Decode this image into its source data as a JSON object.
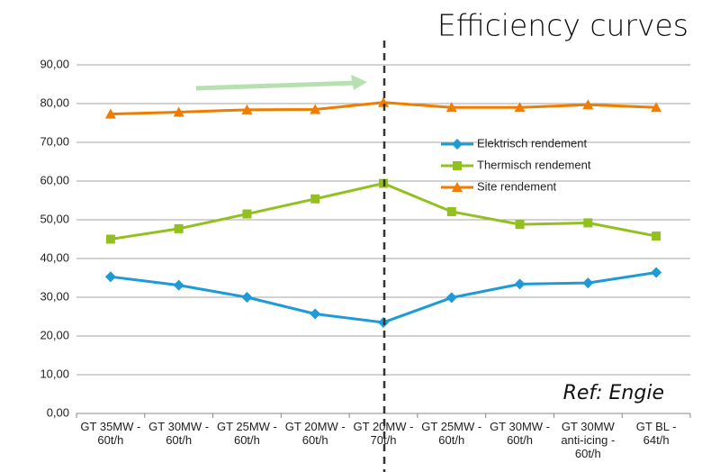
{
  "chart_data": {
    "type": "line",
    "title": "Efficiency curves",
    "annotation": "Ref: Engie",
    "categories": [
      "GT 35MW - 60t/h",
      "GT 30MW - 60t/h",
      "GT 25MW - 60t/h",
      "GT 20MW - 60t/h",
      "GT 20MW - 70t/h",
      "GT 25MW - 60t/h",
      "GT 30MW - 60t/h",
      "GT 30MW anti-icing - 60t/h",
      "GT BL - 64t/h"
    ],
    "series": [
      {
        "name": "Elektrisch rendement",
        "color": "#1e9ad6",
        "marker": "diamond",
        "values": [
          35.3,
          33.1,
          30.0,
          25.7,
          23.5,
          29.9,
          33.4,
          33.7,
          36.4
        ]
      },
      {
        "name": "Thermisch rendement",
        "color": "#92c01f",
        "marker": "square",
        "values": [
          45.0,
          47.7,
          51.5,
          55.4,
          59.4,
          52.1,
          48.8,
          49.2,
          45.8
        ]
      },
      {
        "name": "Site rendement",
        "color": "#f07c00",
        "marker": "triangle",
        "values": [
          77.3,
          77.8,
          78.4,
          78.5,
          80.3,
          79.0,
          79.0,
          79.7,
          79.0
        ]
      }
    ],
    "ylim": [
      0,
      90
    ],
    "yticks": [
      {
        "value": 0,
        "label": "0,00"
      },
      {
        "value": 10,
        "label": "10,00"
      },
      {
        "value": 20,
        "label": "20,00"
      },
      {
        "value": 30,
        "label": "30,00"
      },
      {
        "value": 40,
        "label": "40,00"
      },
      {
        "value": 50,
        "label": "50,00"
      },
      {
        "value": 60,
        "label": "60,00"
      },
      {
        "value": 70,
        "label": "70,00"
      },
      {
        "value": 80,
        "label": "80,00"
      },
      {
        "value": 90,
        "label": "90,00"
      }
    ],
    "grid": true,
    "legend": "right"
  }
}
